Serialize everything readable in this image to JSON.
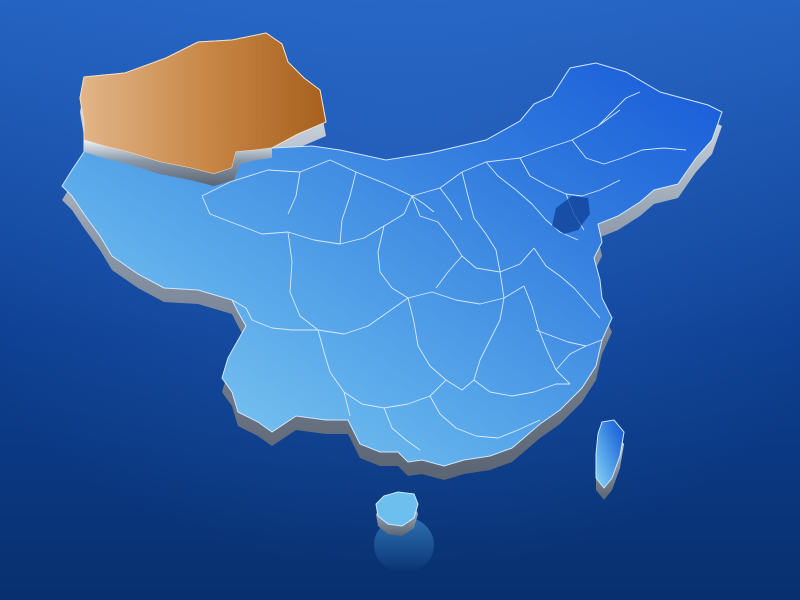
{
  "map": {
    "background_gradient": [
      "#2563c2",
      "#0d3f92",
      "#08306f"
    ],
    "map_fill_gradient": [
      "#8fd6f4",
      "#5aa9ea",
      "#2f79de",
      "#1456d8"
    ],
    "highlight_region": {
      "fill_gradient": [
        "#e2b68a",
        "#c98848",
        "#a7601d"
      ]
    },
    "extrusion_colors": [
      "#eef3f8",
      "#8b98a8",
      "#5b6472"
    ],
    "border_color": "#e6f2ff"
  }
}
